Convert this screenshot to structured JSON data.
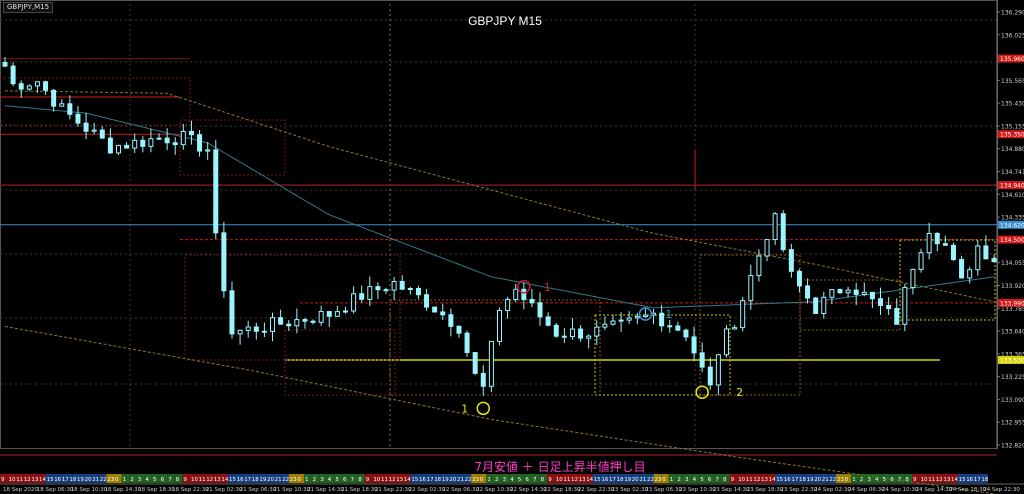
{
  "window": {
    "symbol_tab": "GBPJPY,M15"
  },
  "caption": "7月安値 ＋ 日足上昇半値押し目",
  "colors": {
    "background": "#000000",
    "candle": "#9bf5ff",
    "grid": "#3a3a3a",
    "axis_text": "#cfcfcf",
    "red_level": "#d01818",
    "maroon_level": "#7a1818",
    "blue_level": "#3b8fd4",
    "yellow_level": "#d6d400",
    "ma_olive": "#8a7a2a",
    "ma_teal": "#2f7a8a",
    "circle_yellow": "#e6e600",
    "circle_red": "#d01840",
    "circle_blue": "#3b8fd4",
    "marker_red_text": "#d01840",
    "marker_blue_text": "#3b8fd4",
    "marker_yellow_text": "#e6e600",
    "caption": "#ff3cc8"
  },
  "chart_data": {
    "type": "candlestick",
    "title": "GBPJPY M15",
    "ylim": [
      132.82,
      136.4
    ],
    "y_ticks": [
      "136.290",
      "136.025",
      "135.820",
      "135.565",
      "135.430",
      "135.155",
      "134.880",
      "134.741",
      "134.610",
      "134.335",
      "134.195",
      "134.055",
      "133.920",
      "133.785",
      "133.640",
      "133.365",
      "133.225",
      "133.090",
      "132.955",
      "132.820"
    ],
    "price_tags": [
      {
        "label": "135.960",
        "value": 135.96,
        "color": "#d01818"
      },
      {
        "label": "135.350",
        "value": 135.35,
        "color": "#d01818"
      },
      {
        "label": "134.940",
        "value": 134.94,
        "color": "#d01818"
      },
      {
        "label": "134.500",
        "value": 134.5,
        "color": "#d01818"
      },
      {
        "label": "134.620",
        "value": 134.62,
        "color": "#3b8fd4"
      },
      {
        "label": "133.990",
        "value": 133.99,
        "color": "#d01818"
      },
      {
        "label": "133.530",
        "value": 133.53,
        "color": "#d6d400"
      }
    ],
    "x_labels": [
      "18 Sep 2020",
      "18 Sep 06:30",
      "18 Sep 10:30",
      "18 Sep 14:30",
      "18 Sep 18:30",
      "18 Sep 22:30",
      "21 Sep 02:30",
      "21 Sep 06:30",
      "21 Sep 10:30",
      "21 Sep 14:30",
      "21 Sep 18:30",
      "21 Sep 22:30",
      "22 Sep 02:30",
      "22 Sep 06:30",
      "22 Sep 10:30",
      "22 Sep 14:30",
      "22 Sep 18:30",
      "22 Sep 22:30",
      "23 Sep 02:30",
      "23 Sep 06:30",
      "23 Sep 10:30",
      "23 Sep 14:30",
      "23 Sep 18:30",
      "23 Sep 22:30",
      "24 Sep 02:30",
      "24 Sep 06:30",
      "24 Sep 10:30",
      "24 Sep 14:30",
      "24 Sep 18:30",
      "24 Sep 22:30"
    ],
    "hour_strip": [
      "9",
      "10",
      "11",
      "12",
      "13",
      "14",
      "15",
      "16",
      "17",
      "18",
      "19",
      "20",
      "21",
      "22",
      "23",
      "0",
      "1",
      "2",
      "3",
      "4",
      "5",
      "6",
      "7",
      "8"
    ],
    "anchors": [
      [
        0,
        135.9
      ],
      [
        1,
        135.75
      ],
      [
        4,
        135.78
      ],
      [
        7,
        135.55
      ],
      [
        10,
        135.4
      ],
      [
        13,
        135.25
      ],
      [
        16,
        135.28
      ],
      [
        19,
        135.32
      ],
      [
        22,
        135.32
      ],
      [
        25,
        135.23
      ],
      [
        26,
        134.5
      ],
      [
        28,
        133.75
      ],
      [
        32,
        133.8
      ],
      [
        36,
        133.85
      ],
      [
        40,
        133.9
      ],
      [
        44,
        134.05
      ],
      [
        48,
        134.15
      ],
      [
        52,
        134.0
      ],
      [
        56,
        133.8
      ],
      [
        58,
        133.4
      ],
      [
        59,
        133.3
      ],
      [
        61,
        133.95
      ],
      [
        63,
        134.1
      ],
      [
        65,
        133.95
      ],
      [
        68,
        133.75
      ],
      [
        72,
        133.75
      ],
      [
        76,
        133.8
      ],
      [
        80,
        133.9
      ],
      [
        84,
        133.75
      ],
      [
        86,
        133.45
      ],
      [
        87,
        133.3
      ],
      [
        88,
        133.6
      ],
      [
        90,
        133.85
      ],
      [
        92,
        134.2
      ],
      [
        94,
        134.55
      ],
      [
        95,
        134.65
      ],
      [
        97,
        134.2
      ],
      [
        100,
        133.95
      ],
      [
        104,
        134.15
      ],
      [
        108,
        133.95
      ],
      [
        110,
        133.85
      ],
      [
        112,
        134.3
      ],
      [
        114,
        134.6
      ],
      [
        116,
        134.45
      ],
      [
        118,
        134.15
      ],
      [
        120,
        134.45
      ],
      [
        122,
        134.35
      ]
    ],
    "ma_olive": [
      [
        0,
        135.7
      ],
      [
        20,
        135.68
      ],
      [
        40,
        135.25
      ],
      [
        60,
        134.9
      ],
      [
        80,
        134.55
      ],
      [
        100,
        134.3
      ],
      [
        122,
        134.0
      ]
    ],
    "ma_teal": [
      [
        0,
        135.58
      ],
      [
        10,
        135.52
      ],
      [
        25,
        135.28
      ],
      [
        40,
        134.7
      ],
      [
        60,
        134.2
      ],
      [
        80,
        133.95
      ],
      [
        100,
        134.0
      ],
      [
        122,
        134.2
      ]
    ],
    "ma_lower": [
      [
        0,
        133.8
      ],
      [
        30,
        133.45
      ],
      [
        60,
        133.05
      ],
      [
        90,
        132.75
      ],
      [
        122,
        132.45
      ]
    ],
    "markers": [
      {
        "label": "1",
        "index": 59,
        "price": 133.14,
        "text_color": "#e6e600",
        "circle_color": "#e6e600",
        "text_offset": -22
      },
      {
        "label": "1",
        "index": 64,
        "price": 134.12,
        "text_color": "#d01840",
        "circle_color": "#d01840",
        "text_offset": 20
      },
      {
        "label": "1",
        "index": 79,
        "price": 133.9,
        "text_color": "#3b8fd4",
        "circle_color": "#3b8fd4",
        "text_offset": 20
      },
      {
        "label": "2",
        "index": 86,
        "price": 133.27,
        "text_color": "#e6e600",
        "circle_color": "#e6e600",
        "text_offset": 34
      }
    ]
  }
}
